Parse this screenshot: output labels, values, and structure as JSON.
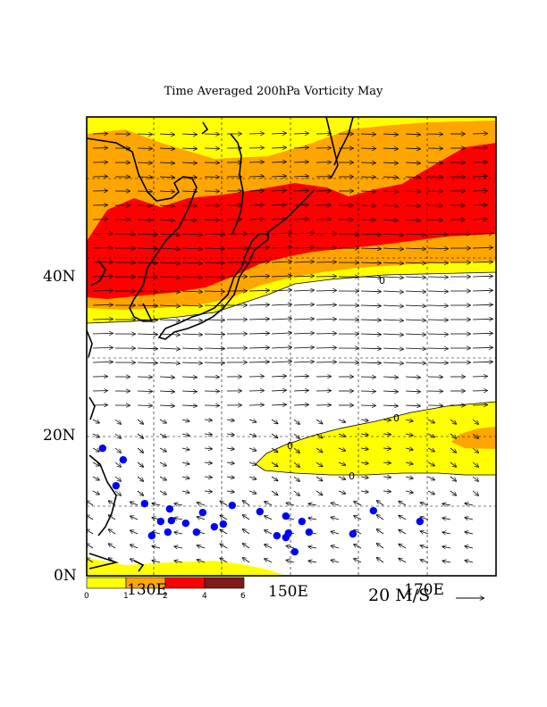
{
  "title": "Time Averaged 200hPa Vorticity May",
  "lat_labels": [
    "40N",
    "20N",
    "0N"
  ],
  "lon_labels": [
    "130E",
    "150E",
    "170E"
  ],
  "contour_labels": [
    "0",
    "0",
    "0",
    "0"
  ],
  "vector_scale_label": "20 M/S",
  "colorbar": {
    "ticks": [
      "0",
      "1",
      "2",
      "4",
      "6"
    ],
    "colors": [
      "#ffff00",
      "#ffa500",
      "#ff0000",
      "#7f1a1a"
    ]
  },
  "colors": {
    "low": "#ffff00",
    "mid": "#ffa500",
    "high": "#ff0000",
    "cyclone_marker": "#0000ff",
    "coastline": "#000000"
  }
}
